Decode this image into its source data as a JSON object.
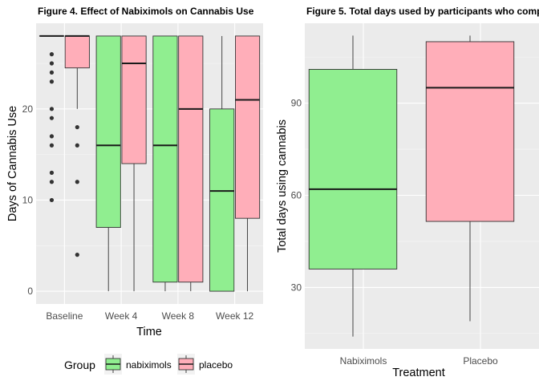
{
  "chart_data": [
    {
      "type": "boxplot",
      "title": "Figure 4. Effect of Nabiximols on Cannabis Use",
      "xlabel": "Time",
      "ylabel": "Days of Cannabis Use",
      "categories": [
        "Baseline",
        "Week 4",
        "Week 8",
        "Week 12"
      ],
      "yticks": [
        0,
        10,
        20
      ],
      "ylim": [
        -1.4,
        29.4
      ],
      "grid": true,
      "legend": {
        "title": "Group",
        "position": "bottom",
        "entries": [
          {
            "label": "nabiximols",
            "color": "#90EE90"
          },
          {
            "label": "placebo",
            "color": "#FFAEB9"
          }
        ]
      },
      "series": [
        {
          "name": "nabiximols",
          "color": "#90EE90",
          "boxes": [
            {
              "category": "Baseline",
              "min": 28,
              "q1": 28,
              "median": 28,
              "q3": 28,
              "max": 28,
              "outliers": [
                26,
                25,
                24,
                23,
                20,
                19,
                17,
                16,
                13,
                12,
                10
              ]
            },
            {
              "category": "Week 4",
              "min": 0,
              "q1": 7,
              "median": 16,
              "q3": 28,
              "max": 28,
              "outliers": []
            },
            {
              "category": "Week 8",
              "min": 0,
              "q1": 1,
              "median": 16,
              "q3": 28,
              "max": 28,
              "outliers": []
            },
            {
              "category": "Week 12",
              "min": 0,
              "q1": 0,
              "median": 11,
              "q3": 20,
              "max": 28,
              "outliers": []
            }
          ]
        },
        {
          "name": "placebo",
          "color": "#FFAEB9",
          "boxes": [
            {
              "category": "Baseline",
              "min": 20,
              "q1": 24.5,
              "median": 28,
              "q3": 28,
              "max": 28,
              "outliers": [
                18,
                16,
                12,
                4
              ]
            },
            {
              "category": "Week 4",
              "min": 0,
              "q1": 14,
              "median": 25,
              "q3": 28,
              "max": 28,
              "outliers": []
            },
            {
              "category": "Week 8",
              "min": 0,
              "q1": 1,
              "median": 20,
              "q3": 28,
              "max": 28,
              "outliers": []
            },
            {
              "category": "Week 12",
              "min": 0,
              "q1": 8,
              "median": 21,
              "q3": 28,
              "max": 28,
              "outliers": []
            }
          ]
        }
      ]
    },
    {
      "type": "boxplot",
      "title": "Figure 5. Total days used by participants who comp",
      "xlabel": "Treatment",
      "ylabel": "Total days using cannabis",
      "categories": [
        "Nabiximols",
        "Placebo"
      ],
      "yticks": [
        30,
        60,
        90
      ],
      "ylim": [
        10,
        116
      ],
      "grid": true,
      "boxes": [
        {
          "category": "Nabiximols",
          "color": "#90EE90",
          "min": 14,
          "q1": 36,
          "median": 62,
          "q3": 101,
          "max": 112
        },
        {
          "category": "Placebo",
          "color": "#FFAEB9",
          "min": 19,
          "q1": 51.5,
          "median": 95,
          "q3": 110,
          "max": 112
        }
      ]
    }
  ]
}
